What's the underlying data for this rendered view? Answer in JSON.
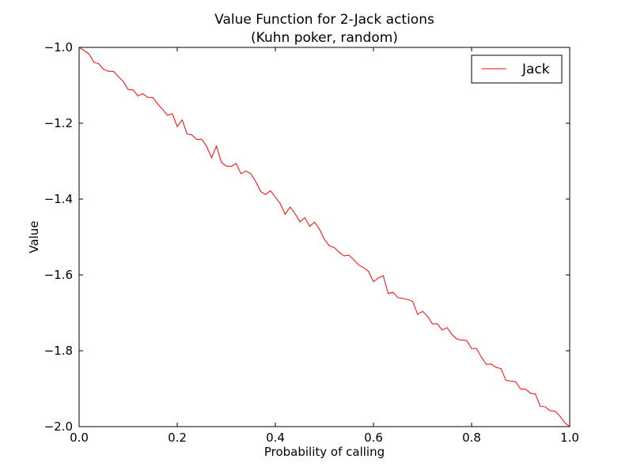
{
  "chart_data": {
    "type": "line",
    "title": "Value Function for 2-Jack actions",
    "subtitle": "(Kuhn poker, random)",
    "xlabel": "Probability of calling",
    "ylabel": "Value",
    "xlim": [
      0.0,
      1.0
    ],
    "ylim": [
      -2.0,
      -1.0
    ],
    "xticks": [
      "0.0",
      "0.2",
      "0.4",
      "0.6",
      "0.8",
      "1.0"
    ],
    "yticks": [
      "−1.0",
      "−1.2",
      "−1.4",
      "−1.6",
      "−1.8",
      "−2.0"
    ],
    "grid": false,
    "legend_position": "top-right",
    "series": [
      {
        "name": "Jack",
        "color": "#ff0000",
        "x": [
          0.0,
          0.01,
          0.02,
          0.03,
          0.04,
          0.05,
          0.06,
          0.07,
          0.08,
          0.09,
          0.1,
          0.11,
          0.12,
          0.13,
          0.14,
          0.15,
          0.16,
          0.17,
          0.18,
          0.19,
          0.2,
          0.21,
          0.22,
          0.23,
          0.24,
          0.25,
          0.26,
          0.27,
          0.28,
          0.29,
          0.3,
          0.31,
          0.32,
          0.33,
          0.34,
          0.35,
          0.36,
          0.37,
          0.38,
          0.39,
          0.4,
          0.41,
          0.42,
          0.43,
          0.44,
          0.45,
          0.46,
          0.47,
          0.48,
          0.49,
          0.5,
          0.51,
          0.52,
          0.53,
          0.54,
          0.55,
          0.56,
          0.57,
          0.58,
          0.59,
          0.6,
          0.61,
          0.62,
          0.63,
          0.64,
          0.65,
          0.66,
          0.67,
          0.68,
          0.69,
          0.7,
          0.71,
          0.72,
          0.73,
          0.74,
          0.75,
          0.76,
          0.77,
          0.78,
          0.79,
          0.8,
          0.81,
          0.82,
          0.83,
          0.84,
          0.85,
          0.86,
          0.87,
          0.88,
          0.89,
          0.9,
          0.91,
          0.92,
          0.93,
          0.94,
          0.95,
          0.96,
          0.97,
          0.98,
          0.99,
          1.0
        ],
        "y": [
          -1.0,
          -1.008,
          -1.017,
          -1.039,
          -1.043,
          -1.058,
          -1.063,
          -1.063,
          -1.077,
          -1.09,
          -1.111,
          -1.112,
          -1.128,
          -1.122,
          -1.132,
          -1.132,
          -1.149,
          -1.163,
          -1.179,
          -1.175,
          -1.209,
          -1.191,
          -1.228,
          -1.231,
          -1.243,
          -1.242,
          -1.261,
          -1.291,
          -1.26,
          -1.303,
          -1.313,
          -1.314,
          -1.306,
          -1.333,
          -1.326,
          -1.333,
          -1.354,
          -1.38,
          -1.388,
          -1.378,
          -1.395,
          -1.412,
          -1.44,
          -1.421,
          -1.438,
          -1.46,
          -1.449,
          -1.472,
          -1.461,
          -1.48,
          -1.506,
          -1.523,
          -1.528,
          -1.54,
          -1.55,
          -1.548,
          -1.56,
          -1.574,
          -1.581,
          -1.591,
          -1.618,
          -1.608,
          -1.602,
          -1.649,
          -1.646,
          -1.66,
          -1.662,
          -1.665,
          -1.67,
          -1.704,
          -1.696,
          -1.709,
          -1.729,
          -1.729,
          -1.745,
          -1.739,
          -1.757,
          -1.769,
          -1.772,
          -1.773,
          -1.794,
          -1.794,
          -1.817,
          -1.836,
          -1.835,
          -1.844,
          -1.847,
          -1.878,
          -1.88,
          -1.882,
          -1.901,
          -1.901,
          -1.912,
          -1.914,
          -1.946,
          -1.948,
          -1.958,
          -1.959,
          -1.972,
          -1.99,
          -2.0
        ]
      }
    ]
  }
}
